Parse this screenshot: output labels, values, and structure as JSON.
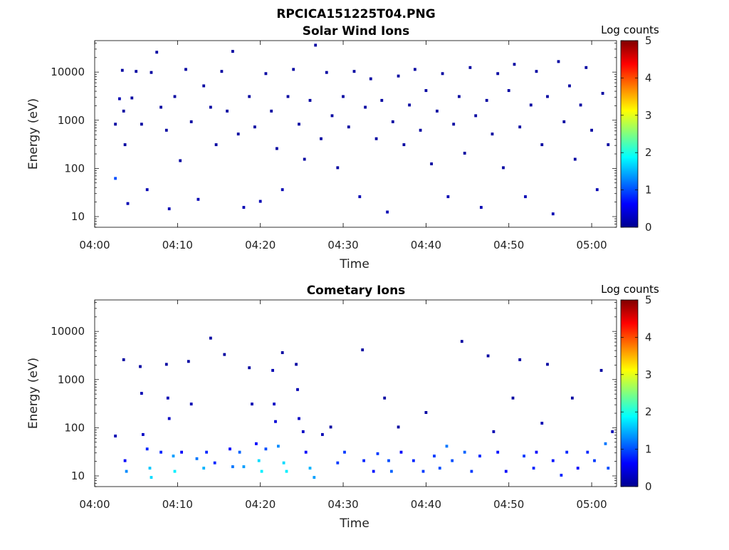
{
  "figure_title": "RPCICA151225T04.PNG",
  "colorbar_label": "Log counts",
  "colormap": [
    "#00008f",
    "#0000ff",
    "#0080ff",
    "#00ffff",
    "#80ff80",
    "#ffff00",
    "#ff8000",
    "#ff0000",
    "#800000"
  ],
  "chart_data": [
    {
      "type": "heatmap",
      "title": "Solar Wind Ions",
      "xlabel": "Time",
      "ylabel": "Energy (eV)",
      "y_scale": "log",
      "xlim": [
        "04:00",
        "05:03"
      ],
      "ylim": [
        6,
        45000
      ],
      "x_ticks": [
        "04:00",
        "04:10",
        "04:20",
        "04:30",
        "04:40",
        "04:50",
        "05:00"
      ],
      "y_ticks": [
        "10",
        "100",
        "1000",
        "10000"
      ],
      "colorbar_ticks": [
        "0",
        "1",
        "2",
        "3",
        "4",
        "5"
      ],
      "colorbar_range": [
        0,
        5
      ],
      "points": [
        [
          "04:02:30",
          60,
          1
        ],
        [
          "04:02:30",
          800,
          0.1
        ],
        [
          "04:03:00",
          2700,
          0.2
        ],
        [
          "04:03:20",
          10500,
          0.1
        ],
        [
          "04:03:30",
          1500,
          0.1
        ],
        [
          "04:03:40",
          300,
          0.1
        ],
        [
          "04:04:00",
          18,
          0.2
        ],
        [
          "04:04:30",
          2800,
          0.1
        ],
        [
          "04:05:00",
          10000,
          0.1
        ],
        [
          "04:05:40",
          800,
          0.1
        ],
        [
          "04:06:20",
          35,
          0.2
        ],
        [
          "04:06:50",
          9500,
          0.1
        ],
        [
          "04:07:30",
          25000,
          0.1
        ],
        [
          "04:08:00",
          1800,
          0.1
        ],
        [
          "04:08:40",
          600,
          0.1
        ],
        [
          "04:09:00",
          14,
          0.2
        ],
        [
          "04:09:40",
          3000,
          0.1
        ],
        [
          "04:10:20",
          140,
          0.1
        ],
        [
          "04:11:00",
          11000,
          0.1
        ],
        [
          "04:11:40",
          900,
          0.1
        ],
        [
          "04:12:30",
          22,
          0.2
        ],
        [
          "04:13:10",
          5000,
          0.1
        ],
        [
          "04:14:00",
          1800,
          0.1
        ],
        [
          "04:14:40",
          300,
          0.1
        ],
        [
          "04:15:20",
          10000,
          0.1
        ],
        [
          "04:16:00",
          1500,
          0.1
        ],
        [
          "04:16:40",
          26000,
          0.1
        ],
        [
          "04:17:20",
          500,
          0.1
        ],
        [
          "04:18:00",
          15,
          0.2
        ],
        [
          "04:18:40",
          3000,
          0.1
        ],
        [
          "04:19:20",
          700,
          0.1
        ],
        [
          "04:20:00",
          20,
          0.2
        ],
        [
          "04:20:40",
          9000,
          0.1
        ],
        [
          "04:21:20",
          1500,
          0.1
        ],
        [
          "04:22:00",
          250,
          0.1
        ],
        [
          "04:22:40",
          35,
          0.2
        ],
        [
          "04:23:20",
          3000,
          0.1
        ],
        [
          "04:24:00",
          11000,
          0.1
        ],
        [
          "04:24:40",
          800,
          0.1
        ],
        [
          "04:25:20",
          150,
          0.1
        ],
        [
          "04:26:00",
          2500,
          0.1
        ],
        [
          "04:26:40",
          35000,
          0.1
        ],
        [
          "04:27:20",
          400,
          0.1
        ],
        [
          "04:28:00",
          9500,
          0.1
        ],
        [
          "04:28:40",
          1200,
          0.1
        ],
        [
          "04:29:20",
          100,
          0.1
        ],
        [
          "04:30:00",
          3000,
          0.1
        ],
        [
          "04:30:40",
          700,
          0.1
        ],
        [
          "04:31:20",
          10000,
          0.1
        ],
        [
          "04:32:00",
          25,
          0.2
        ],
        [
          "04:32:40",
          1800,
          0.1
        ],
        [
          "04:33:20",
          7000,
          0.1
        ],
        [
          "04:34:00",
          400,
          0.1
        ],
        [
          "04:34:40",
          2500,
          0.1
        ],
        [
          "04:35:20",
          12,
          0.2
        ],
        [
          "04:36:00",
          900,
          0.1
        ],
        [
          "04:36:40",
          8000,
          0.1
        ],
        [
          "04:37:20",
          300,
          0.1
        ],
        [
          "04:38:00",
          2000,
          0.1
        ],
        [
          "04:38:40",
          11000,
          0.1
        ],
        [
          "04:39:20",
          600,
          0.1
        ],
        [
          "04:40:00",
          4000,
          0.1
        ],
        [
          "04:40:40",
          120,
          0.1
        ],
        [
          "04:41:20",
          1500,
          0.1
        ],
        [
          "04:42:00",
          9000,
          0.1
        ],
        [
          "04:42:40",
          25,
          0.2
        ],
        [
          "04:43:20",
          800,
          0.1
        ],
        [
          "04:44:00",
          3000,
          0.1
        ],
        [
          "04:44:40",
          200,
          0.1
        ],
        [
          "04:45:20",
          12000,
          0.1
        ],
        [
          "04:46:00",
          1200,
          0.1
        ],
        [
          "04:46:40",
          15,
          0.2
        ],
        [
          "04:47:20",
          2500,
          0.1
        ],
        [
          "04:48:00",
          500,
          0.1
        ],
        [
          "04:48:40",
          9000,
          0.1
        ],
        [
          "04:49:20",
          100,
          0.1
        ],
        [
          "04:50:00",
          4000,
          0.1
        ],
        [
          "04:50:40",
          14000,
          0.1
        ],
        [
          "04:51:20",
          700,
          0.1
        ],
        [
          "04:52:00",
          25,
          0.2
        ],
        [
          "04:52:40",
          2000,
          0.1
        ],
        [
          "04:53:20",
          10000,
          0.1
        ],
        [
          "04:54:00",
          300,
          0.1
        ],
        [
          "04:54:40",
          3000,
          0.1
        ],
        [
          "04:55:20",
          11,
          0.2
        ],
        [
          "04:56:00",
          16000,
          0.1
        ],
        [
          "04:56:40",
          900,
          0.1
        ],
        [
          "04:57:20",
          5000,
          0.1
        ],
        [
          "04:58:00",
          150,
          0.1
        ],
        [
          "04:58:40",
          2000,
          0.1
        ],
        [
          "04:59:20",
          12000,
          0.1
        ],
        [
          "05:00:00",
          600,
          0.1
        ],
        [
          "05:00:40",
          35,
          0.2
        ],
        [
          "05:01:20",
          3500,
          0.1
        ],
        [
          "05:02:00",
          300,
          0.1
        ]
      ]
    },
    {
      "type": "heatmap",
      "title": "Cometary Ions",
      "xlabel": "Time",
      "ylabel": "Energy (eV)",
      "y_scale": "log",
      "xlim": [
        "04:00",
        "05:03"
      ],
      "ylim": [
        6,
        45000
      ],
      "x_ticks": [
        "04:00",
        "04:10",
        "04:20",
        "04:30",
        "04:40",
        "04:50",
        "05:00"
      ],
      "y_ticks": [
        "10",
        "100",
        "1000",
        "10000"
      ],
      "colorbar_ticks": [
        "0",
        "1",
        "2",
        "3",
        "4",
        "5"
      ],
      "colorbar_range": [
        0,
        5
      ],
      "points": [
        [
          "04:02:30",
          65,
          0.2
        ],
        [
          "04:03:30",
          2500,
          0.1
        ],
        [
          "04:03:40",
          20,
          0.6
        ],
        [
          "04:03:50",
          12,
          1.3
        ],
        [
          "04:05:30",
          1800,
          0.1
        ],
        [
          "04:05:40",
          500,
          0.2
        ],
        [
          "04:05:50",
          70,
          0.3
        ],
        [
          "04:06:20",
          35,
          0.8
        ],
        [
          "04:06:40",
          14,
          1.6
        ],
        [
          "04:06:50",
          9,
          1.7
        ],
        [
          "04:08:00",
          30,
          0.8
        ],
        [
          "04:08:40",
          2000,
          0.1
        ],
        [
          "04:08:50",
          400,
          0.2
        ],
        [
          "04:09:00",
          150,
          0.3
        ],
        [
          "04:09:30",
          25,
          1.4
        ],
        [
          "04:09:40",
          12,
          1.8
        ],
        [
          "04:10:30",
          30,
          0.6
        ],
        [
          "04:11:20",
          2300,
          0.1
        ],
        [
          "04:11:40",
          300,
          0.2
        ],
        [
          "04:12:20",
          22,
          1.2
        ],
        [
          "04:13:10",
          14,
          1.5
        ],
        [
          "04:13:30",
          30,
          0.8
        ],
        [
          "04:14:00",
          7000,
          0.1
        ],
        [
          "04:14:30",
          18,
          0.8
        ],
        [
          "04:15:40",
          3200,
          0.1
        ],
        [
          "04:16:20",
          35,
          0.6
        ],
        [
          "04:16:40",
          15,
          1.2
        ],
        [
          "04:17:30",
          30,
          1.1
        ],
        [
          "04:18:00",
          15,
          1.4
        ],
        [
          "04:18:40",
          1700,
          0.1
        ],
        [
          "04:19:00",
          300,
          0.2
        ],
        [
          "04:19:30",
          45,
          0.6
        ],
        [
          "04:19:50",
          20,
          1.7
        ],
        [
          "04:20:10",
          12,
          1.8
        ],
        [
          "04:20:40",
          35,
          1.0
        ],
        [
          "04:21:30",
          1500,
          0.2
        ],
        [
          "04:21:40",
          300,
          0.3
        ],
        [
          "04:21:50",
          130,
          0.4
        ],
        [
          "04:22:10",
          40,
          1.3
        ],
        [
          "04:22:40",
          3500,
          0.1
        ],
        [
          "04:22:50",
          18,
          1.7
        ],
        [
          "04:23:10",
          12,
          1.8
        ],
        [
          "04:24:20",
          2000,
          0.1
        ],
        [
          "04:24:30",
          600,
          0.2
        ],
        [
          "04:24:40",
          150,
          0.3
        ],
        [
          "04:25:10",
          80,
          0.3
        ],
        [
          "04:25:30",
          30,
          0.6
        ],
        [
          "04:26:00",
          14,
          1.5
        ],
        [
          "04:26:30",
          9,
          1.4
        ],
        [
          "04:27:30",
          70,
          0.2
        ],
        [
          "04:28:30",
          100,
          0.1
        ],
        [
          "04:29:20",
          18,
          0.9
        ],
        [
          "04:30:10",
          30,
          0.9
        ],
        [
          "04:32:20",
          4000,
          0.1
        ],
        [
          "04:32:30",
          20,
          0.8
        ],
        [
          "04:33:40",
          12,
          0.7
        ],
        [
          "04:34:10",
          28,
          0.9
        ],
        [
          "04:35:00",
          400,
          0.1
        ],
        [
          "04:35:30",
          20,
          1.0
        ],
        [
          "04:35:50",
          12,
          1.1
        ],
        [
          "04:36:40",
          100,
          0.1
        ],
        [
          "04:37:00",
          30,
          0.6
        ],
        [
          "04:38:30",
          20,
          0.8
        ],
        [
          "04:39:40",
          12,
          0.9
        ],
        [
          "04:40:00",
          200,
          0.1
        ],
        [
          "04:41:00",
          25,
          0.9
        ],
        [
          "04:41:40",
          14,
          1.0
        ],
        [
          "04:42:30",
          40,
          1.2
        ],
        [
          "04:43:10",
          20,
          1.0
        ],
        [
          "04:44:20",
          6000,
          0.1
        ],
        [
          "04:44:40",
          30,
          1.1
        ],
        [
          "04:45:30",
          12,
          0.9
        ],
        [
          "04:46:30",
          25,
          0.8
        ],
        [
          "04:47:30",
          3000,
          0.1
        ],
        [
          "04:48:10",
          80,
          0.2
        ],
        [
          "04:48:40",
          30,
          0.7
        ],
        [
          "04:49:40",
          12,
          0.6
        ],
        [
          "04:50:30",
          400,
          0.1
        ],
        [
          "04:51:20",
          2500,
          0.1
        ],
        [
          "04:51:50",
          25,
          0.9
        ],
        [
          "04:53:00",
          14,
          0.8
        ],
        [
          "04:53:20",
          30,
          0.6
        ],
        [
          "04:54:00",
          120,
          0.2
        ],
        [
          "04:54:40",
          2000,
          0.1
        ],
        [
          "04:55:20",
          20,
          0.7
        ],
        [
          "04:56:20",
          10,
          0.8
        ],
        [
          "04:57:00",
          30,
          0.8
        ],
        [
          "04:57:40",
          400,
          0.1
        ],
        [
          "04:58:20",
          14,
          0.6
        ],
        [
          "04:59:30",
          30,
          0.8
        ],
        [
          "05:00:20",
          20,
          0.9
        ],
        [
          "05:01:10",
          1500,
          0.1
        ],
        [
          "05:01:40",
          45,
          1.2
        ],
        [
          "05:02:00",
          14,
          1.0
        ],
        [
          "05:02:30",
          80,
          0.2
        ]
      ]
    }
  ]
}
